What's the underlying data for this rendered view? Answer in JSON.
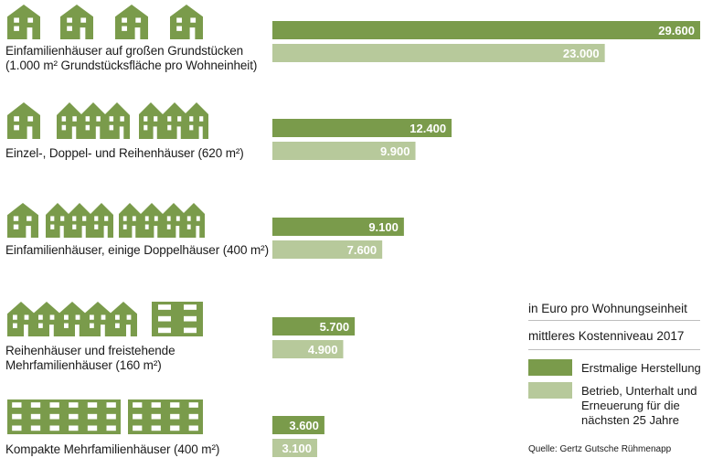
{
  "colors": {
    "dark": "#7a9b4b",
    "light": "#b7c99b",
    "house": "#7a9b4b"
  },
  "legend": {
    "unit": "in Euro pro Wohnungseinheit",
    "cost_level": "mittleres Kostenniveau 2017",
    "series_first": "Erstmalige Herstellung",
    "series_second": "Betrieb, Unterhalt und\nErneuerung für die\nnächsten 25 Jahre"
  },
  "source": "Quelle: Gertz Gutsche Rühmenapp",
  "chart_data": {
    "type": "bar",
    "orientation": "horizontal",
    "categories": [
      "Einfamilienhäuser auf großen Grundstücken\n(1.000 m² Grundstücksfläche pro Wohneinheit)",
      "Einzel-, Doppel- und Reihenhäuser (620 m²)",
      "Einfamilienhäuser, einige Doppelhäuser (400 m²)",
      "Reihenhäuser und freistehende\nMehrfamilienhäuser (160 m²)",
      "Kompakte Mehrfamilienhäuser (400 m²)"
    ],
    "series": [
      {
        "name": "Erstmalige Herstellung",
        "values": [
          29600,
          12400,
          9100,
          5700,
          3600
        ],
        "labels": [
          "29.600",
          "12.400",
          "9.100",
          "5.700",
          "3.600"
        ]
      },
      {
        "name": "Betrieb, Unterhalt und Erneuerung für die nächsten 25 Jahre",
        "values": [
          23000,
          9900,
          7600,
          4900,
          3100
        ],
        "labels": [
          "23.000",
          "9.900",
          "7.600",
          "4.900",
          "3.100"
        ]
      }
    ],
    "xlim": [
      0,
      29600
    ],
    "grid": false
  }
}
